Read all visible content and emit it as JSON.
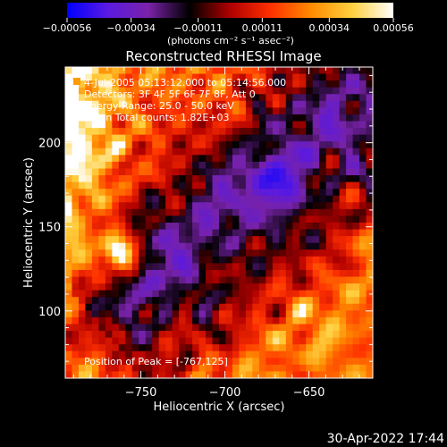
{
  "chart_data": {
    "type": "heatmap",
    "title": "Reconstructed RHESSI Image",
    "xlabel": "Heliocentric X (arcsec)",
    "ylabel": "Heliocentric Y (arcsec)",
    "xlim": [
      -795,
      -612
    ],
    "ylim": [
      60,
      245
    ],
    "x_ticks": [
      -750,
      -700,
      -650
    ],
    "x_tick_labels": [
      "−750",
      "−700",
      "−650"
    ],
    "y_ticks": [
      100,
      150,
      200
    ],
    "y_tick_labels": [
      "100",
      "150",
      "200"
    ],
    "colorbar": {
      "range": [
        -0.00056,
        0.00056
      ],
      "ticks": [
        -0.00056,
        -0.00034,
        -0.00011,
        0.00011,
        0.00034,
        0.00056
      ],
      "tick_labels": [
        "−0.00056",
        "−0.00034",
        "−0.00011",
        "0.00011",
        "0.00034",
        "0.00056"
      ],
      "units": "(photons cm⁻² s⁻¹ asec⁻²)",
      "colors": [
        "#0000ff",
        "#5a1ae0",
        "#7a22a8",
        "#000000",
        "#b00000",
        "#ff3000",
        "#ff8c00",
        "#ffd040",
        "#ffffff"
      ]
    },
    "annotations": [
      "4-Jul-2005 05:13:12.000 to 05:14:56.000",
      "Detectors: 3F 4F 5F 6F 7F 8F, Att 0",
      "Energy Range: 25.0 - 50.0 keV",
      "Clean     Total counts: 1.82E+03"
    ],
    "peak_label": "Position of Peak = [-767,125]",
    "peak": [
      -767,
      125
    ],
    "grid": false
  },
  "footer": {
    "timestamp": "30-Apr-2022 17:44"
  }
}
